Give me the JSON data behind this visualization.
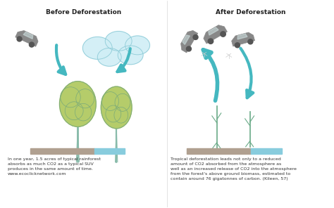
{
  "bg_color": "#ffffff",
  "title_left": "Before Deforestation",
  "title_right": "After Deforestation",
  "title_fontsize": 6.5,
  "text_left": "In one year, 1.5 acres of typical rainforest\nabsorbs as much CO2 as a typical SUV\nproduces in the same amount of time.\nwww.ecoclicknetwork.com",
  "text_right": "Tropical deforestation leads not only to a reduced\namount of CO2 absorbed from the atmosphere as\nwell as an increased release of CO2 into the atmosphere\nfrom the forest's above ground biomass, estimated to\ncontain around 76 gigatonnes of carbon. (Kileen, 57)",
  "text_fontsize": 4.5,
  "teal_color": "#45b8c0",
  "bubble_fill": "#d0eef5",
  "bubble_edge": "#90ccd8",
  "green_fill": "#b5cc6a",
  "green_edge": "#7aaa7a",
  "trunk_color": "#88bbaa",
  "tan_bar": "#b0a090",
  "sky_bar": "#88ccdd",
  "suv_color": "#888888",
  "suv_detail": "#555555",
  "stump_color": "#6aaa88",
  "panel_line": "#dddddd",
  "title_color": "#222222"
}
